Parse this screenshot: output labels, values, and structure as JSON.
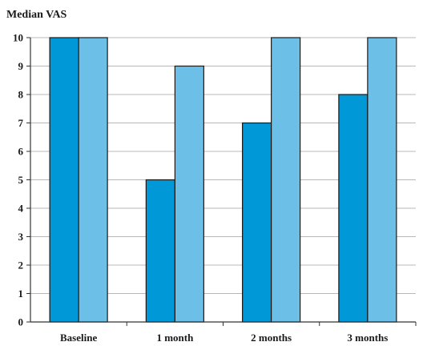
{
  "chart_data": {
    "type": "bar",
    "title": "Median VAS",
    "xlabel": "",
    "ylabel": "Median VAS",
    "categories": [
      "Baseline",
      "1 month",
      "2 months",
      "3 months"
    ],
    "series": [
      {
        "values": [
          10,
          5,
          7,
          8
        ],
        "color": "#0098d6"
      },
      {
        "values": [
          10,
          9,
          10,
          10
        ],
        "color": "#6cc0e8"
      }
    ],
    "ylim": [
      0,
      10
    ],
    "yticks": [
      0,
      1,
      2,
      3,
      4,
      5,
      6,
      7,
      8,
      9,
      10
    ],
    "grid": true,
    "legend": "none"
  }
}
